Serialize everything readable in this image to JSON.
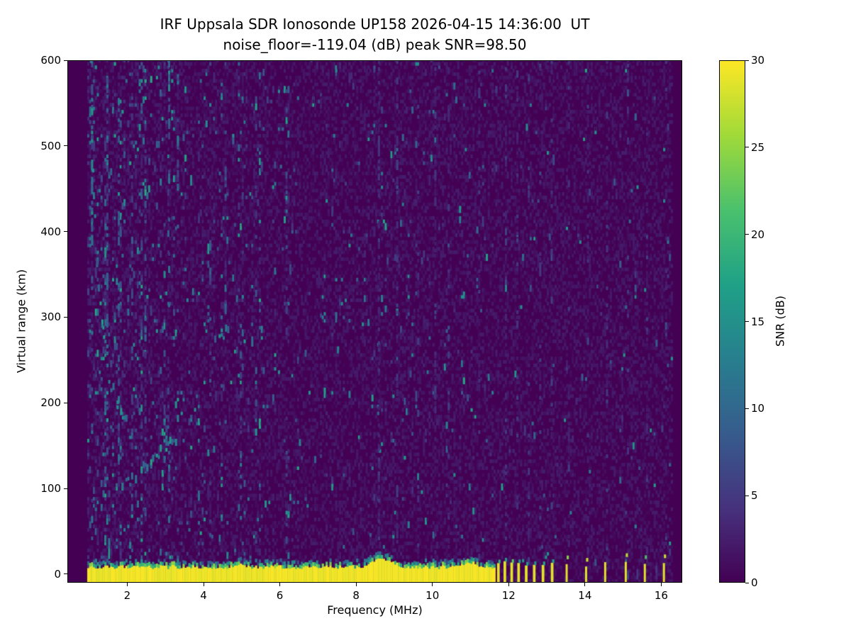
{
  "chart_data": {
    "type": "heatmap",
    "title": "IRF Uppsala SDR Ionosonde UP158 2026-04-15 14:36:00  UT",
    "subtitle": "noise_floor=-119.04 (dB) peak SNR=98.50",
    "station": "IRF Uppsala SDR Ionosonde UP158",
    "timestamp_ut": "2026-04-15 14:36:00",
    "noise_floor_db": -119.04,
    "peak_snr_db": 98.5,
    "xlabel": "Frequency (MHz)",
    "ylabel": "Virtual range (km)",
    "xlim": [
      0.43,
      16.55
    ],
    "ylim": [
      -10,
      600
    ],
    "x_ticks": [
      2,
      4,
      6,
      8,
      10,
      12,
      14,
      16
    ],
    "y_ticks": [
      0,
      100,
      200,
      300,
      400,
      500,
      600
    ],
    "freq_range_mhz": [
      0.95,
      16.3
    ],
    "freq_bin_mhz": 0.05,
    "range_bin_km": 4,
    "grid": false,
    "legend": "colorbar-right",
    "colormap": "viridis",
    "colormap_stops": [
      "#440154",
      "#46327e",
      "#365c8d",
      "#277f8e",
      "#1fa187",
      "#4ac16d",
      "#a0da39",
      "#fde725"
    ],
    "colorbar": {
      "label": "SNR (dB)",
      "min": 0,
      "max": 30,
      "ticks": [
        0,
        5,
        10,
        15,
        20,
        25,
        30
      ]
    },
    "features": {
      "background_noise": {
        "dense_below_mhz": 5.6,
        "typical_snr_db": [
          2,
          18
        ],
        "note": "dense teal speckle at low frequencies, sparse above 12 MHz"
      },
      "ground_band": {
        "freq_start": 0.95,
        "freq_end": 11.62,
        "base_top_km": 9,
        "snr_db": 30,
        "bumps": [
          [
            3.0,
            3.35,
            11
          ],
          [
            4.75,
            5.15,
            11
          ],
          [
            7.95,
            9.4,
            17
          ],
          [
            10.5,
            11.4,
            14
          ]
        ]
      },
      "stepped_pulses": {
        "freqs_mhz": [
          11.73,
          11.9,
          12.08,
          12.26,
          12.46,
          12.67,
          12.9,
          13.14
        ],
        "width_mhz": 0.07,
        "top_km": 14,
        "snr_db": 30
      },
      "sparse_pulses": {
        "freqs_mhz": [
          13.52,
          14.03,
          14.53,
          15.07,
          15.57,
          16.07
        ],
        "width_mhz": 0.055,
        "top_km": 12,
        "snr_db": 30
      },
      "echo_traces": [
        {
          "name": "descending-low-freq-trace",
          "points_mhz_km": [
            [
              1.02,
              600
            ],
            [
              1.08,
              470
            ],
            [
              1.18,
              360
            ],
            [
              1.32,
              285
            ],
            [
              1.5,
              225
            ],
            [
              1.72,
              196
            ],
            [
              1.95,
              178
            ]
          ]
        },
        {
          "name": "oblique-rising-trace",
          "points_mhz_km": [
            [
              1.85,
              103
            ],
            [
              2.2,
              112
            ],
            [
              2.6,
              128
            ],
            [
              3.0,
              146
            ],
            [
              3.25,
              153
            ]
          ]
        },
        {
          "name": "short-mid-trace",
          "points_mhz_km": [
            [
              4.28,
              272
            ],
            [
              4.45,
              281
            ],
            [
              4.62,
              276
            ]
          ]
        }
      ],
      "interference_columns": [
        [
          1.05,
          0.45,
          380,
          600,
          5,
          16
        ],
        [
          1.05,
          0.15,
          0,
          380,
          4,
          12
        ],
        [
          1.45,
          0.2,
          100,
          600,
          4,
          12
        ],
        [
          1.75,
          0.18,
          80,
          560,
          4,
          12
        ],
        [
          2.1,
          0.16,
          150,
          600,
          4,
          10
        ],
        [
          2.45,
          0.12,
          60,
          500,
          3,
          10
        ],
        [
          3.07,
          0.5,
          520,
          600,
          6,
          16
        ],
        [
          3.07,
          0.18,
          60,
          520,
          4,
          12
        ],
        [
          3.3,
          0.28,
          400,
          600,
          5,
          14
        ],
        [
          4.15,
          0.35,
          330,
          400,
          5,
          14
        ],
        [
          4.15,
          0.1,
          0,
          330,
          3,
          9
        ],
        [
          4.55,
          0.14,
          100,
          500,
          3,
          10
        ],
        [
          4.95,
          0.16,
          40,
          300,
          4,
          12
        ],
        [
          5.35,
          0.1,
          0,
          600,
          3,
          8
        ],
        [
          6.15,
          0.07,
          0,
          600,
          2,
          7
        ],
        [
          7.05,
          0.06,
          0,
          600,
          2,
          7
        ],
        [
          8.35,
          0.22,
          12,
          45,
          5,
          12
        ],
        [
          8.57,
          0.45,
          0,
          600,
          2,
          6
        ],
        [
          9.05,
          0.2,
          0,
          600,
          2,
          6
        ],
        [
          9.6,
          0.14,
          0,
          600,
          2,
          6
        ],
        [
          10.05,
          0.2,
          0,
          600,
          2,
          6
        ],
        [
          10.4,
          0.12,
          0,
          600,
          2,
          6
        ],
        [
          11.2,
          0.12,
          0,
          600,
          2,
          6
        ],
        [
          11.9,
          0.15,
          0,
          600,
          2,
          6
        ],
        [
          12.2,
          0.13,
          0,
          600,
          2,
          6
        ],
        [
          12.5,
          0.13,
          0,
          600,
          2,
          6
        ],
        [
          12.8,
          0.12,
          0,
          600,
          2,
          6
        ],
        [
          13.1,
          0.12,
          0,
          600,
          2,
          6
        ],
        [
          13.55,
          0.13,
          0,
          600,
          2,
          6
        ],
        [
          14.05,
          0.12,
          0,
          600,
          2,
          6
        ],
        [
          14.55,
          0.12,
          0,
          600,
          2,
          6
        ],
        [
          15.1,
          0.11,
          0,
          600,
          2,
          6
        ],
        [
          15.6,
          0.11,
          0,
          600,
          2,
          6
        ],
        [
          16.1,
          0.11,
          0,
          600,
          2,
          6
        ]
      ]
    }
  }
}
